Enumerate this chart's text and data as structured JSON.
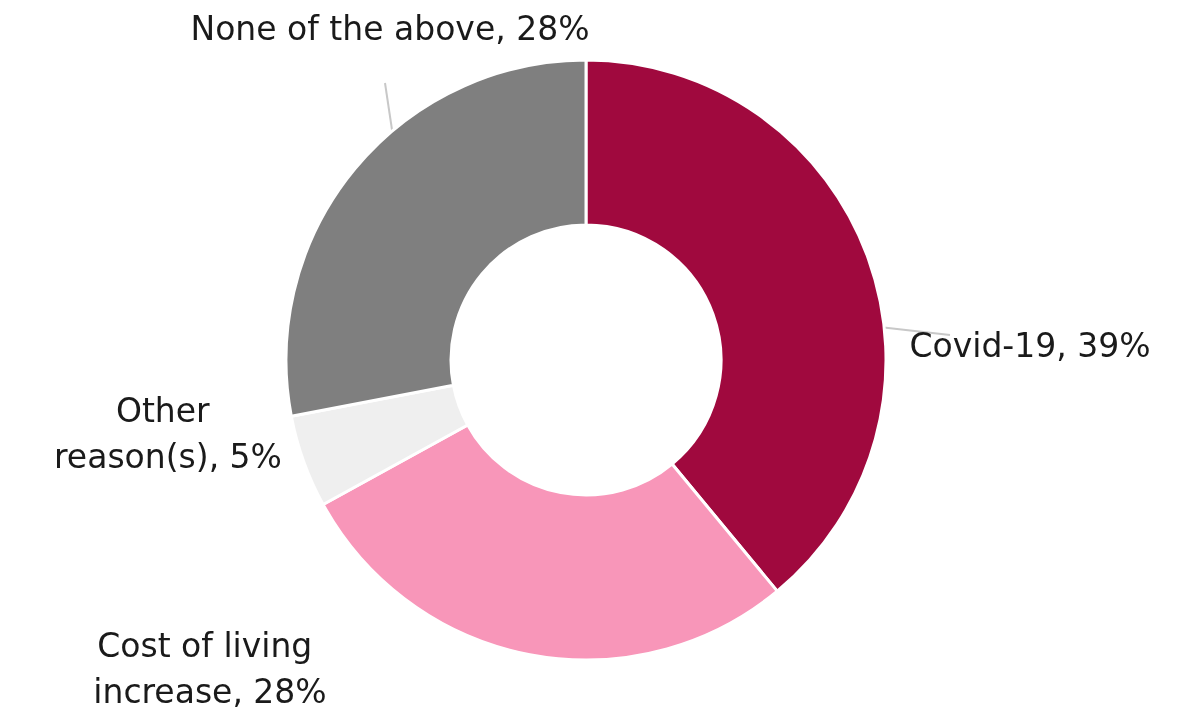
{
  "chart_data": {
    "type": "donut",
    "categories": [
      "Covid-19",
      "Cost of living increase",
      "Other reason(s)",
      "None of the above"
    ],
    "values": [
      39,
      28,
      5,
      28
    ],
    "value_labels": [
      "39%",
      "28%",
      "5%",
      "28%"
    ],
    "colors": [
      "#a0093e",
      "#f896b9",
      "#efefef",
      "#7f7f7f"
    ],
    "legend": false
  }
}
